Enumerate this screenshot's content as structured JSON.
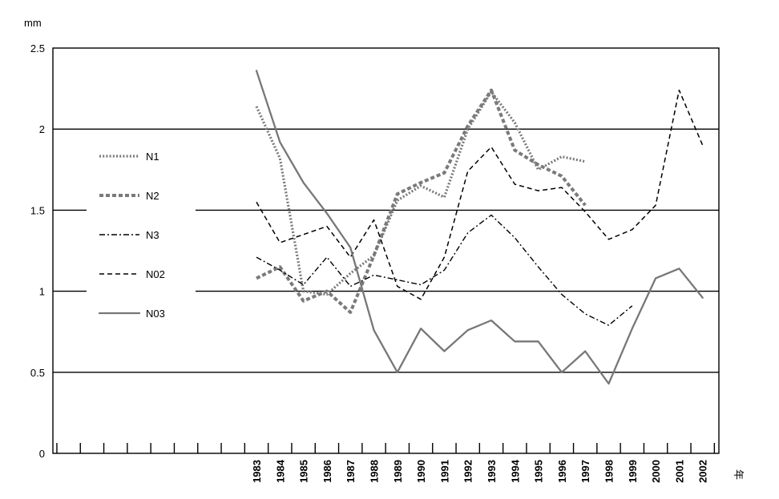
{
  "chart_data": {
    "type": "line",
    "ylabel": "mm",
    "xlabel": "年",
    "ylim": [
      0,
      2.5
    ],
    "y_ticks": [
      "0",
      "0.5",
      "1",
      "1.5",
      "2",
      "2.5"
    ],
    "grid": "horizontal",
    "legend_position": "left",
    "categories": [
      "1983",
      "1984",
      "1985",
      "1986",
      "1987",
      "1988",
      "1989",
      "1990",
      "1991",
      "1992",
      "1993",
      "1994",
      "1995",
      "1996",
      "1997",
      "1998",
      "1999",
      "2000",
      "2001",
      "2002"
    ],
    "series": [
      {
        "name": "N1",
        "color": "#7a7a7a",
        "style": "dotted",
        "values": [
          2.14,
          1.82,
          1.0,
          0.98,
          1.11,
          1.22,
          1.56,
          1.65,
          1.58,
          2.0,
          2.23,
          2.04,
          1.75,
          1.83,
          1.8,
          null,
          null,
          null,
          null,
          null
        ]
      },
      {
        "name": "N2",
        "color": "#7a7a7a",
        "style": "thick-dashed",
        "values": [
          1.08,
          1.15,
          0.94,
          1.0,
          0.87,
          1.22,
          1.6,
          1.67,
          1.73,
          2.02,
          2.24,
          1.87,
          1.78,
          1.71,
          1.53,
          null,
          null,
          null,
          null,
          null
        ]
      },
      {
        "name": "N3",
        "color": "#000000",
        "style": "dash-dot",
        "values": [
          1.21,
          1.13,
          1.04,
          1.21,
          1.03,
          1.1,
          1.07,
          1.04,
          1.13,
          1.36,
          1.47,
          1.33,
          1.15,
          0.98,
          0.86,
          0.79,
          0.91,
          null,
          null,
          null
        ]
      },
      {
        "name": "N02",
        "color": "#000000",
        "style": "dashed",
        "values": [
          1.55,
          1.3,
          1.35,
          1.4,
          1.21,
          1.44,
          1.03,
          0.95,
          1.21,
          1.74,
          1.89,
          1.66,
          1.62,
          1.64,
          1.49,
          1.32,
          1.38,
          1.53,
          2.24,
          1.9
        ]
      },
      {
        "name": "N03",
        "color": "#777777",
        "style": "solid",
        "values": [
          2.36,
          1.92,
          1.67,
          1.48,
          1.27,
          0.76,
          0.5,
          0.77,
          0.63,
          0.76,
          0.82,
          0.69,
          0.69,
          0.5,
          0.63,
          0.43,
          0.77,
          1.08,
          1.14,
          0.96
        ]
      }
    ]
  }
}
